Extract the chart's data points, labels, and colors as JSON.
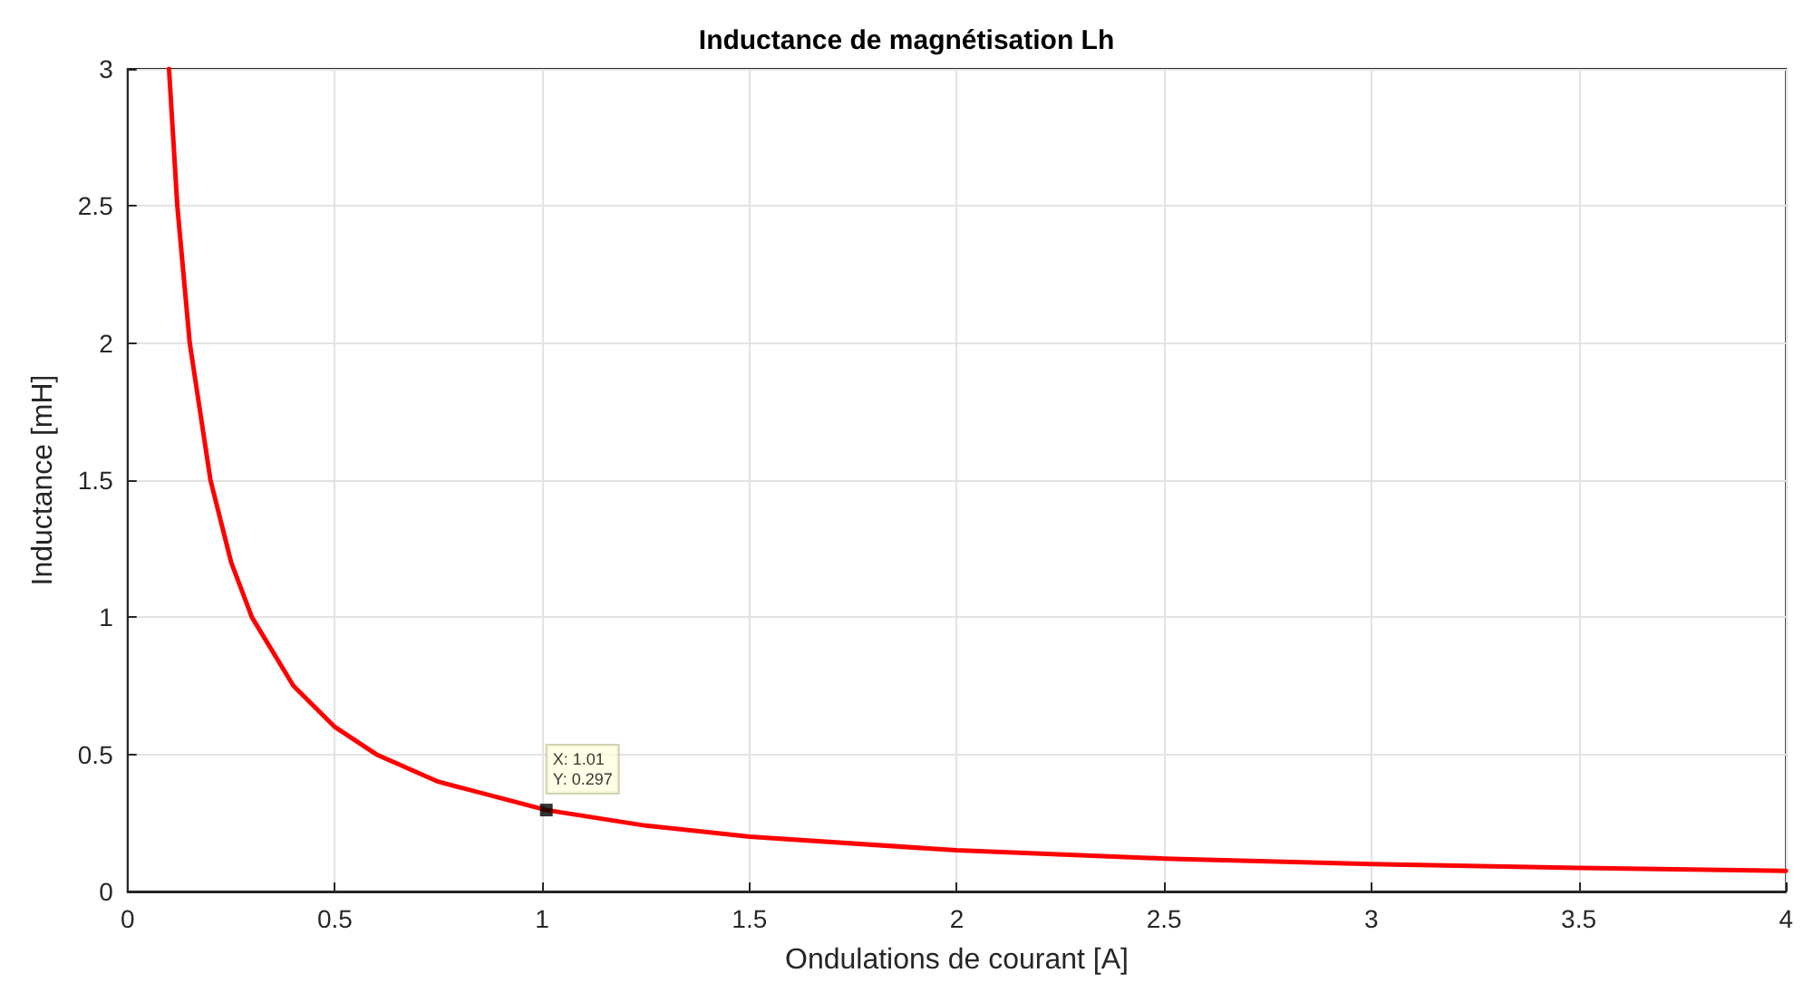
{
  "chart_data": {
    "type": "line",
    "title": "Inductance de magnétisation Lh",
    "xlabel": "Ondulations de courant [A]",
    "ylabel": "Inductance [mH]",
    "series": [
      {
        "color": "#ff0000",
        "x": [
          0.1,
          0.12,
          0.15,
          0.2,
          0.25,
          0.3,
          0.4,
          0.5,
          0.6,
          0.75,
          1.01,
          1.25,
          1.5,
          2,
          2.5,
          3,
          3.5,
          4
        ],
        "values": [
          3,
          2.5,
          2,
          1.5,
          1.2,
          1,
          0.75,
          0.6,
          0.5,
          0.4,
          0.297,
          0.24,
          0.2,
          0.15,
          0.12,
          0.1,
          0.086,
          0.075
        ]
      }
    ],
    "xlim": [
      0,
      4
    ],
    "xticks": [
      0,
      0.5,
      1,
      1.5,
      2,
      2.5,
      3,
      3.5,
      4
    ],
    "ylim": [
      0,
      3
    ],
    "yticks": [
      0,
      0.5,
      1,
      1.5,
      2,
      2.5,
      3
    ],
    "grid": true,
    "marker": "none",
    "line_style": "solid",
    "annotations": [
      {
        "text": "X: 1.01\nY: 0.297",
        "x": 1.01,
        "y": 0.297
      }
    ]
  }
}
